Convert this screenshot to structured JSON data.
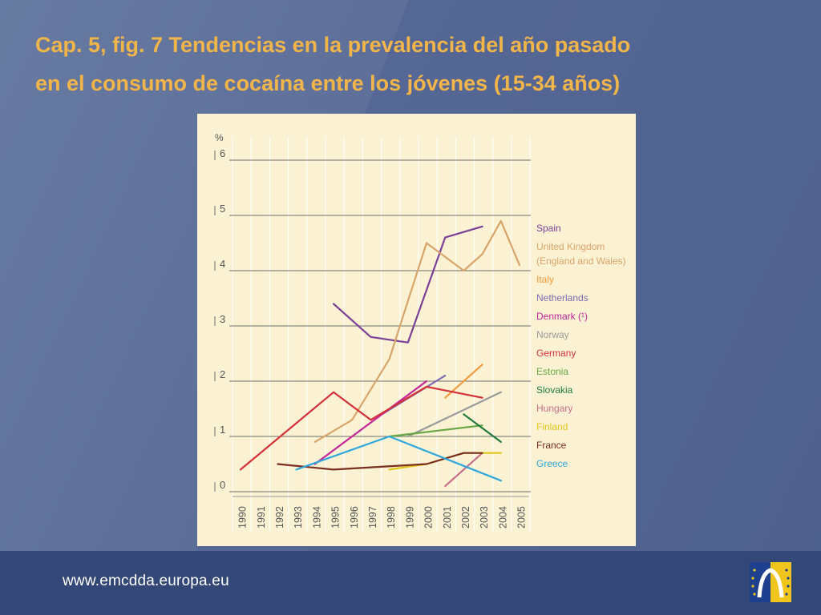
{
  "title_lines": [
    "Cap. 5, fig. 7 Tendencias en la prevalencia del año pasado",
    "en el consumo de cocaína entre los jóvenes (15-34 años)"
  ],
  "footer": {
    "url": "www.emcdda.europa.eu"
  },
  "colors": {
    "title": "#f2b54a",
    "background": "#53648f",
    "footer": "#344877",
    "chart_bg": "#faf2d3"
  },
  "chart_data": {
    "type": "line",
    "ylabel": "%",
    "ylim": [
      0,
      6
    ],
    "yticks": [
      0,
      1,
      2,
      3,
      4,
      5,
      6
    ],
    "categories": [
      "1990",
      "1991",
      "1992",
      "1993",
      "1994",
      "1995",
      "1996",
      "1997",
      "1998",
      "1999",
      "2000",
      "2001",
      "2002",
      "2003",
      "2004",
      "2005"
    ],
    "legend_position": "right",
    "series": [
      {
        "name": "Spain",
        "color": "#7b3f98",
        "points": [
          [
            1995,
            3.4
          ],
          [
            1997,
            2.8
          ],
          [
            1999,
            2.7
          ],
          [
            2001,
            4.6
          ],
          [
            2003,
            4.8
          ]
        ]
      },
      {
        "name": "United Kingdom",
        "name2": "(England and Wales)",
        "color": "#d9a46a",
        "points": [
          [
            1994,
            0.9
          ],
          [
            1996,
            1.3
          ],
          [
            1998,
            2.4
          ],
          [
            2000,
            4.5
          ],
          [
            2002,
            4.0
          ],
          [
            2003,
            4.3
          ],
          [
            2004,
            4.9
          ],
          [
            2005,
            4.1
          ]
        ]
      },
      {
        "name": "Italy",
        "color": "#f49a3c",
        "points": [
          [
            2001,
            1.7
          ],
          [
            2003,
            2.3
          ]
        ]
      },
      {
        "name": "Netherlands",
        "color": "#7f6bb0",
        "points": [
          [
            1997.6,
            1.4
          ],
          [
            2001,
            2.1
          ]
        ]
      },
      {
        "name": "Denmark (¹)",
        "color": "#c4259a",
        "points": [
          [
            1994,
            0.5
          ],
          [
            2000,
            2.0
          ]
        ]
      },
      {
        "name": "Norway",
        "color": "#9a9a9a",
        "points": [
          [
            1999,
            1.0
          ],
          [
            2004,
            1.8
          ]
        ]
      },
      {
        "name": "Germany",
        "color": "#d4303a",
        "points": [
          [
            1990,
            0.4
          ],
          [
            1995,
            1.8
          ],
          [
            1997,
            1.3
          ],
          [
            2000,
            1.9
          ],
          [
            2003,
            1.7
          ]
        ]
      },
      {
        "name": "Estonia",
        "color": "#67a844",
        "points": [
          [
            1998,
            1.0
          ],
          [
            2003,
            1.2
          ]
        ]
      },
      {
        "name": "Slovakia",
        "color": "#1f7a3c",
        "points": [
          [
            2002,
            1.4
          ],
          [
            2004,
            0.9
          ]
        ]
      },
      {
        "name": "Hungary",
        "color": "#c86e8a",
        "points": [
          [
            2001,
            0.1
          ],
          [
            2003,
            0.7
          ]
        ]
      },
      {
        "name": "Finland",
        "color": "#e3c61a",
        "points": [
          [
            1998,
            0.4
          ],
          [
            2000,
            0.5
          ],
          [
            2002,
            0.7
          ],
          [
            2004,
            0.7
          ]
        ]
      },
      {
        "name": "France",
        "color": "#7a2e1e",
        "points": [
          [
            1992,
            0.5
          ],
          [
            1995,
            0.4
          ],
          [
            2000,
            0.5
          ],
          [
            2002,
            0.7
          ],
          [
            2003,
            0.7
          ]
        ]
      },
      {
        "name": "Greece",
        "color": "#2fa6dc",
        "points": [
          [
            1993,
            0.4
          ],
          [
            1998,
            1.0
          ],
          [
            2004,
            0.2
          ]
        ]
      }
    ]
  }
}
